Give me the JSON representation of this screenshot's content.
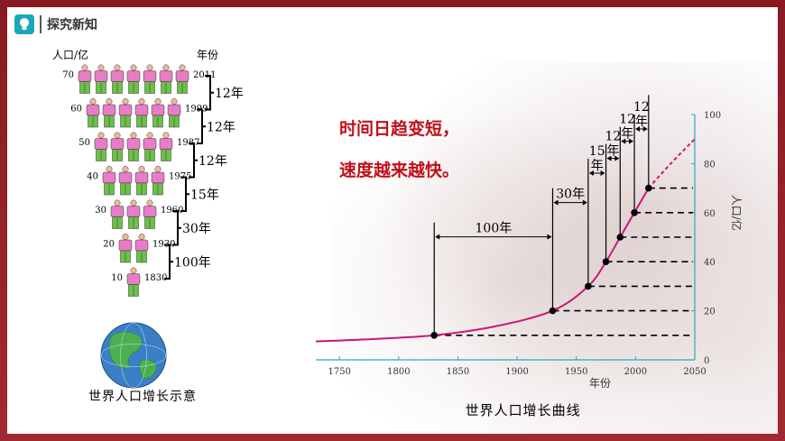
{
  "header": {
    "title": "探究新知",
    "icon": "lightbulb-icon"
  },
  "headline": {
    "line1": "时间日趋变短，",
    "line2": "速度越来越快。"
  },
  "left_figure": {
    "caption": "世界人口增长示意",
    "ylabel": "人口/亿",
    "year_label": "年份",
    "rows": [
      {
        "pop": "70",
        "count": 7,
        "year": "2011"
      },
      {
        "pop": "60",
        "count": 6,
        "year": "1999"
      },
      {
        "pop": "50",
        "count": 5,
        "year": "1987"
      },
      {
        "pop": "40",
        "count": 4,
        "year": "1975"
      },
      {
        "pop": "30",
        "count": 3,
        "year": "1960"
      },
      {
        "pop": "20",
        "count": 2,
        "year": "1930"
      },
      {
        "pop": "10",
        "count": 1,
        "year": "1830"
      }
    ],
    "intervals": [
      "12年",
      "12年",
      "12年",
      "15年",
      "30年",
      "100年"
    ],
    "colors": {
      "shirt": "#e87cc8",
      "pants": "#6cc04a",
      "head": "#f0b89a"
    }
  },
  "chart_data": {
    "type": "line",
    "caption": "世界人口增长曲线",
    "xlabel": "年份",
    "ylabel": "人口/亿",
    "xlim": [
      1730,
      2050
    ],
    "ylim": [
      0,
      100
    ],
    "xticks": [
      "1750",
      "1800",
      "1850",
      "1900",
      "1950",
      "2000",
      "2050"
    ],
    "yticks": [
      "0",
      "20",
      "40",
      "60",
      "80",
      "100"
    ],
    "points": [
      {
        "x": 1830,
        "y": 10
      },
      {
        "x": 1930,
        "y": 20
      },
      {
        "x": 1960,
        "y": 30
      },
      {
        "x": 1975,
        "y": 40
      },
      {
        "x": 1987,
        "y": 50
      },
      {
        "x": 1999,
        "y": 60
      },
      {
        "x": 2011,
        "y": 70
      }
    ],
    "curve": [
      [
        1730,
        7.5
      ],
      [
        1780,
        8.5
      ],
      [
        1830,
        10
      ],
      [
        1880,
        13.5
      ],
      [
        1930,
        20
      ],
      [
        1960,
        30
      ],
      [
        1975,
        40
      ],
      [
        1987,
        50
      ],
      [
        1999,
        60
      ],
      [
        2011,
        70
      ]
    ],
    "projection": [
      [
        2011,
        70
      ],
      [
        2030,
        82
      ],
      [
        2050,
        90
      ]
    ],
    "interval_labels": [
      {
        "from": 1830,
        "to": 1930,
        "label": "100年"
      },
      {
        "from": 1930,
        "to": 1960,
        "label": "30年"
      },
      {
        "from": 1960,
        "to": 1975,
        "label": "15",
        "label2": "年"
      },
      {
        "from": 1975,
        "to": 1987,
        "label": "12",
        "label2": "年"
      },
      {
        "from": 1987,
        "to": 1999,
        "label": "12",
        "label2": "年"
      },
      {
        "from": 1999,
        "to": 2011,
        "label": "12",
        "label2": "年"
      }
    ],
    "colors": {
      "curve": "#c8177a",
      "axis": "#2aa8c8",
      "dash": "#000000"
    }
  }
}
